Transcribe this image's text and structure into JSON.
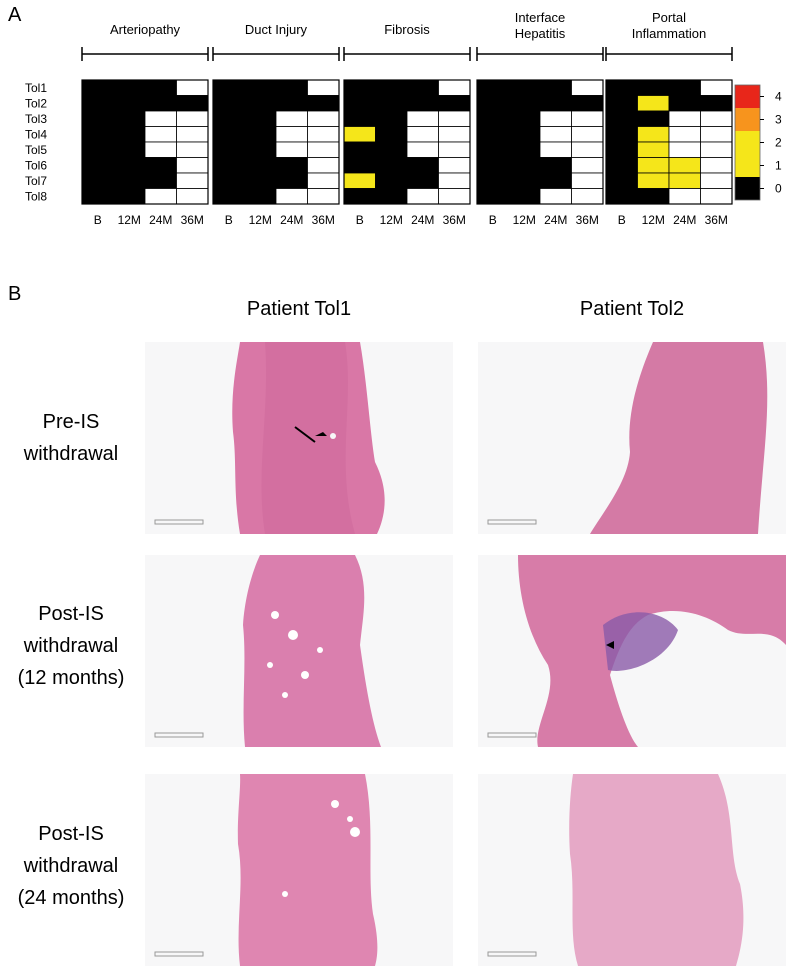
{
  "panels": {
    "a": "A",
    "b": "B"
  },
  "chart_data": {
    "type": "heatmap",
    "groups": [
      "Arteriopathy",
      "Duct Injury",
      "Fibrosis",
      "Interface\nHepatitis",
      "Portal\nInflammation"
    ],
    "rows": [
      "Tol1",
      "Tol2",
      "Tol3",
      "Tol4",
      "Tol5",
      "Tol6",
      "Tol7",
      "Tol8"
    ],
    "columns": [
      "B",
      "12M",
      "24M",
      "36M"
    ],
    "values": [
      [
        [
          0,
          0,
          0,
          -1
        ],
        [
          0,
          0,
          0,
          0
        ],
        [
          0,
          0,
          -1,
          -1
        ],
        [
          0,
          0,
          -1,
          -1
        ],
        [
          0,
          0,
          -1,
          -1
        ],
        [
          0,
          0,
          0,
          -1
        ],
        [
          0,
          0,
          0,
          -1
        ],
        [
          0,
          0,
          -1,
          -1
        ]
      ],
      [
        [
          0,
          0,
          0,
          -1
        ],
        [
          0,
          0,
          0,
          0
        ],
        [
          0,
          0,
          -1,
          -1
        ],
        [
          0,
          0,
          -1,
          -1
        ],
        [
          0,
          0,
          -1,
          -1
        ],
        [
          0,
          0,
          0,
          -1
        ],
        [
          0,
          0,
          0,
          -1
        ],
        [
          0,
          0,
          -1,
          -1
        ]
      ],
      [
        [
          0,
          0,
          0,
          -1
        ],
        [
          0,
          0,
          0,
          0
        ],
        [
          0,
          0,
          -1,
          -1
        ],
        [
          1,
          0,
          -1,
          -1
        ],
        [
          0,
          0,
          -1,
          -1
        ],
        [
          0,
          0,
          0,
          -1
        ],
        [
          1,
          0,
          0,
          -1
        ],
        [
          0,
          0,
          -1,
          -1
        ]
      ],
      [
        [
          0,
          0,
          0,
          -1
        ],
        [
          0,
          0,
          0,
          0
        ],
        [
          0,
          0,
          -1,
          -1
        ],
        [
          0,
          0,
          -1,
          -1
        ],
        [
          0,
          0,
          -1,
          -1
        ],
        [
          0,
          0,
          0,
          -1
        ],
        [
          0,
          0,
          0,
          -1
        ],
        [
          0,
          0,
          -1,
          -1
        ]
      ],
      [
        [
          0,
          0,
          0,
          -1
        ],
        [
          0,
          1,
          0,
          0
        ],
        [
          0,
          0,
          -1,
          -1
        ],
        [
          0,
          1,
          -1,
          -1
        ],
        [
          0,
          1,
          -1,
          -1
        ],
        [
          0,
          1,
          1,
          -1
        ],
        [
          0,
          1,
          1,
          -1
        ],
        [
          0,
          0,
          -1,
          -1
        ]
      ]
    ],
    "legend": {
      "ticks": [
        "4",
        "3",
        "2",
        "1",
        "0"
      ],
      "colors": [
        "#e8261a",
        "#f7941d",
        "#f5e61a",
        "#f5e61a",
        "#000000"
      ],
      "not_assessed_color": "#ffffff"
    },
    "scale_colors": {
      "0": "#000000",
      "1": "#f5e61a",
      "2": "#f5e61a",
      "3": "#f7941d",
      "4": "#e8261a"
    }
  },
  "histology": {
    "column_headers": [
      "Patient Tol1",
      "Patient Tol2"
    ],
    "row_headers": [
      [
        "Pre-IS",
        "withdrawal"
      ],
      [
        "Post-IS",
        "withdrawal",
        "(12 months)"
      ],
      [
        "Post-IS",
        "withdrawal",
        "(24 months)"
      ]
    ],
    "image_descriptions": []
  }
}
